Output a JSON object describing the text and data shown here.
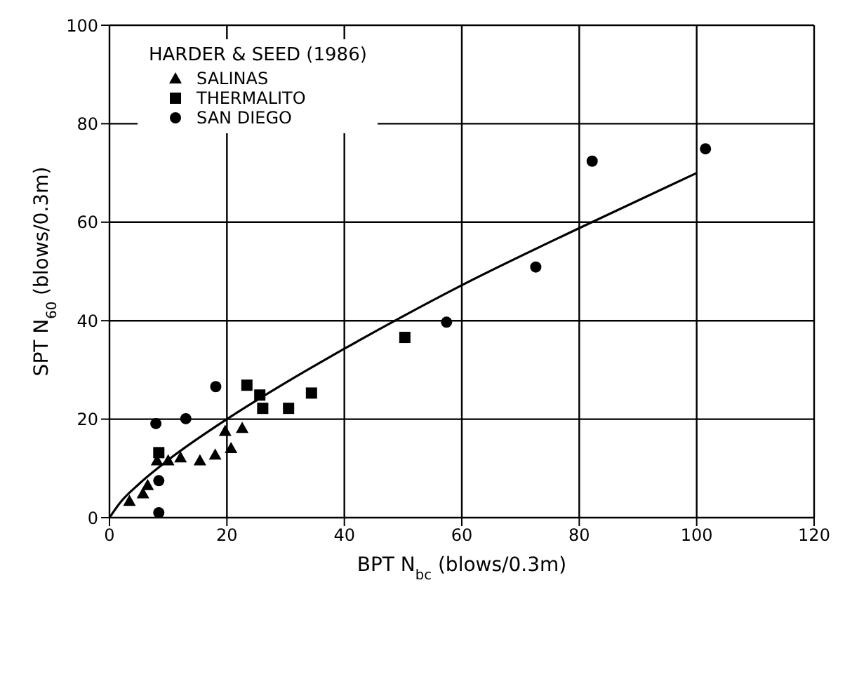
{
  "chart_data": {
    "type": "scatter",
    "xlabel": "BPT N$_{bc}$ (blows/0.3m)",
    "ylabel": "SPT N$_{60}$ (blows/0.3m)",
    "legend_title": "HARDER & SEED (1986)",
    "legend": "top left",
    "grid": true,
    "xlim": [
      0,
      120
    ],
    "xticks": [
      0,
      20,
      40,
      60,
      80,
      100,
      120
    ],
    "ylim": [
      0,
      100
    ],
    "yticks": [
      0,
      20,
      40,
      60,
      80,
      100
    ],
    "series": [
      {
        "name": "SALINAS",
        "color": "#000000",
        "marker": "triangle",
        "x": [
          3.4,
          5.7,
          6.5,
          8.1,
          10,
          12.1,
          15.4,
          18,
          19.7,
          20.7,
          22.6
        ],
        "values": [
          3.4,
          4.9,
          6.6,
          11.6,
          11.6,
          12.2,
          11.6,
          12.8,
          17.6,
          14.1,
          18.2
        ]
      },
      {
        "name": "THERMALITO",
        "color": "#000000",
        "marker": "square",
        "x": [
          8.4,
          23.4,
          25.6,
          26.1,
          30.5,
          34.4,
          50.3
        ],
        "values": [
          13.2,
          26.9,
          24.9,
          22.2,
          22.2,
          25.3,
          36.6
        ]
      },
      {
        "name": "SAN DIEGO",
        "color": "#000000",
        "marker": "circle",
        "x": [
          8.4,
          8.4,
          7.9,
          13,
          18.1,
          57.4,
          72.6,
          82.2,
          101.5
        ],
        "values": [
          1.0,
          7.5,
          19.1,
          20.1,
          26.6,
          39.7,
          50.9,
          72.4,
          74.9
        ]
      },
      {
        "type": "line",
        "color": "#000000",
        "marker": "none",
        "x": [
          0,
          2,
          5,
          10,
          20,
          30,
          40,
          50,
          60,
          80,
          100
        ],
        "values": [
          0,
          3.3,
          6.8,
          11.7,
          20,
          27.4,
          34.3,
          40.9,
          47.2,
          58.8,
          70
        ]
      }
    ]
  }
}
